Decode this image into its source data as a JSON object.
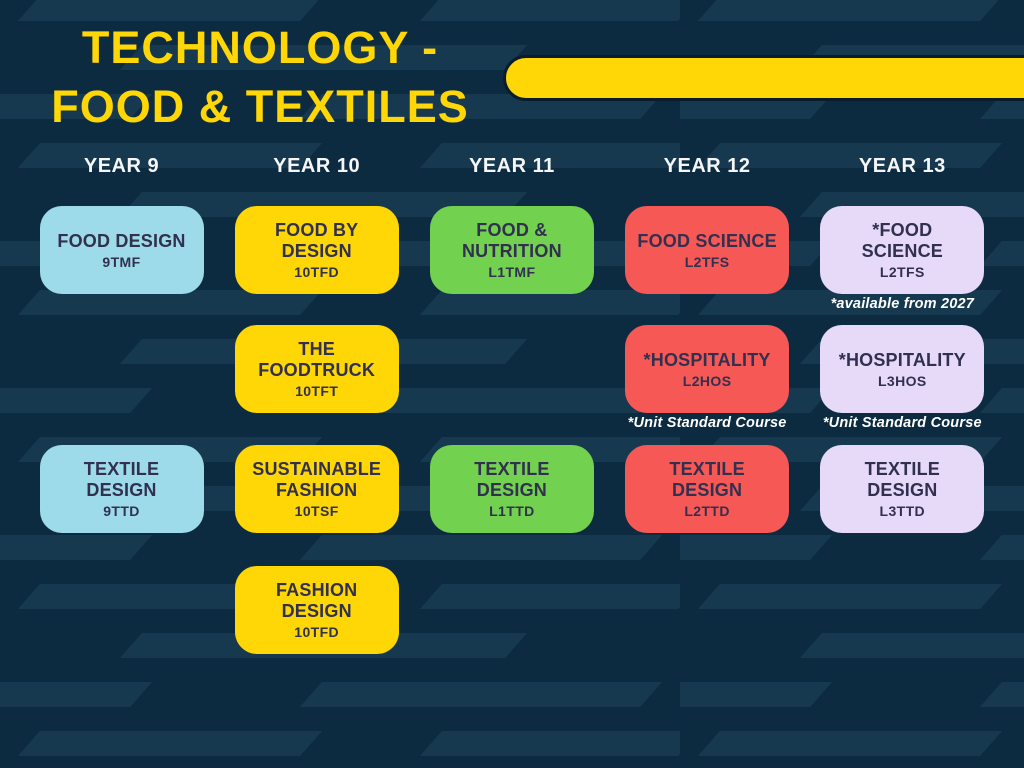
{
  "title": {
    "line1": "TECHNOLOGY -",
    "line2": "FOOD & TEXTILES"
  },
  "colors": {
    "background": "#0d2b40",
    "background_stripe": "#17394f",
    "title_text": "#ffd606",
    "accent_bar_fill": "#ffd606",
    "accent_bar_outline": "#0b1b29",
    "header_text": "#f4f6f8",
    "card_text": "#31304f",
    "footnote_text": "#ffffff",
    "palette": {
      "blue": "#9edbea",
      "yellow": "#ffd606",
      "green": "#72d14f",
      "red": "#f65856",
      "lavender": "#e7daf9"
    }
  },
  "columns": [
    {
      "header": "YEAR 9",
      "courses": [
        {
          "name": "FOOD DESIGN",
          "code": "9TMF",
          "color": "blue",
          "row": 1
        },
        {
          "name": "TEXTILE DESIGN",
          "code": "9TTD",
          "color": "blue",
          "row": 3
        }
      ]
    },
    {
      "header": "YEAR 10",
      "courses": [
        {
          "name": "FOOD BY\nDESIGN",
          "code": "10TFD",
          "color": "yellow",
          "row": 1
        },
        {
          "name": "THE\nFOODTRUCK",
          "code": "10TFT",
          "color": "yellow",
          "row": 2
        },
        {
          "name": "SUSTAINABLE\nFASHION",
          "code": "10TSF",
          "color": "yellow",
          "row": 3
        },
        {
          "name": "FASHION\nDESIGN",
          "code": "10TFD",
          "color": "yellow",
          "row": 4
        }
      ]
    },
    {
      "header": "YEAR 11",
      "courses": [
        {
          "name": "FOOD &\nNUTRITION",
          "code": "L1TMF",
          "color": "green",
          "row": 1
        },
        {
          "name": "TEXTILE\nDESIGN",
          "code": "L1TTD",
          "color": "green",
          "row": 3
        }
      ]
    },
    {
      "header": "YEAR 12",
      "courses": [
        {
          "name": "FOOD SCIENCE",
          "code": "L2TFS",
          "color": "red",
          "row": 1
        },
        {
          "name": "*HOSPITALITY",
          "code": "L2HOS",
          "color": "red",
          "row": 2,
          "footnote": "*Unit Standard Course"
        },
        {
          "name": "TEXTILE\nDESIGN",
          "code": "L2TTD",
          "color": "red",
          "row": 3
        }
      ]
    },
    {
      "header": "YEAR 13",
      "courses": [
        {
          "name": "*FOOD\nSCIENCE",
          "code": "L2TFS",
          "color": "lavender",
          "row": 1,
          "footnote": "*available from 2027"
        },
        {
          "name": "*HOSPITALITY",
          "code": "L3HOS",
          "color": "lavender",
          "row": 2,
          "footnote": "*Unit Standard Course"
        },
        {
          "name": "TEXTILE\nDESIGN",
          "code": "L3TTD",
          "color": "lavender",
          "row": 3
        }
      ]
    }
  ]
}
